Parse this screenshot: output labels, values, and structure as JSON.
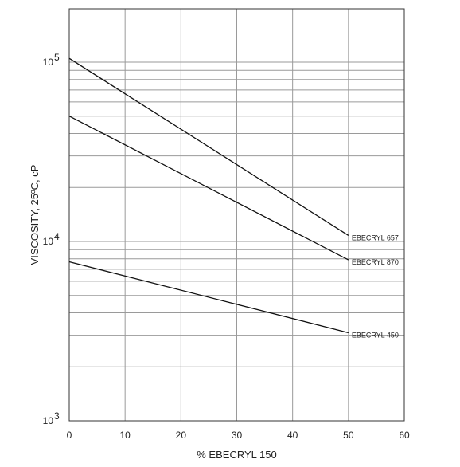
{
  "chart_data": {
    "type": "line",
    "xlabel": "% EBECRYL 150",
    "ylabel": "VISCOSITY, 25ºC, cP",
    "xlim": [
      0,
      60
    ],
    "ylim": [
      1000,
      200000
    ],
    "y_scale": "log",
    "grid": true,
    "x_ticks": [
      0,
      10,
      20,
      30,
      40,
      50,
      60
    ],
    "y_ticks": [
      {
        "value": 1000,
        "base": "10",
        "exp": "3"
      },
      {
        "value": 10000,
        "base": "10",
        "exp": "4"
      },
      {
        "value": 100000,
        "base": "10",
        "exp": "5"
      }
    ],
    "series": [
      {
        "name": "EBECRYL 657",
        "x": [
          0,
          50
        ],
        "y": [
          105000,
          10800
        ]
      },
      {
        "name": "EBECRYL 870",
        "x": [
          0,
          50
        ],
        "y": [
          50000,
          7900
        ]
      },
      {
        "name": "EBECRYL 450",
        "x": [
          0,
          50
        ],
        "y": [
          7700,
          3100
        ]
      }
    ]
  }
}
